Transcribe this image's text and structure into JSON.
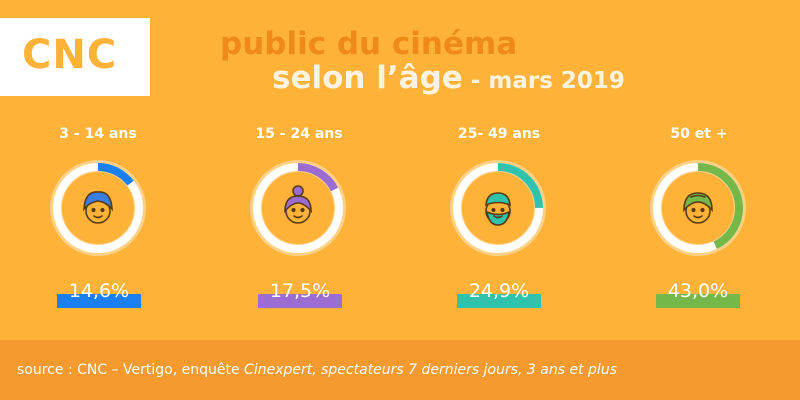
{
  "logo": {
    "text": "CNC"
  },
  "title": {
    "line1": "public du cinéma",
    "line2_main": "selon l’âge",
    "line2_sub": " - mars 2019"
  },
  "colors": {
    "background": "#ffb238",
    "title_accent": "#f08a16",
    "footer": "#f59a2f",
    "ring_halo": "#ffd186",
    "ring_track": "#ffffff",
    "face_fill": "#ffb238",
    "face_line": "#5a3a12"
  },
  "chart_data": {
    "type": "donut",
    "categories": [
      "3 - 14 ans",
      "15 - 24 ans",
      "25- 49 ans",
      "50 et +"
    ],
    "values": [
      14.6,
      17.5,
      24.9,
      43.0
    ],
    "value_labels": [
      "14,6%",
      "17,5%",
      "24,9%",
      "43,0%"
    ],
    "colors": [
      "#1a7ff0",
      "#9b6cd1",
      "#2fc3ae",
      "#74b84a"
    ],
    "icons": [
      "child-face-icon",
      "young-woman-face-icon",
      "bearded-man-face-icon",
      "senior-woman-face-icon"
    ],
    "unit": "%"
  },
  "footer": {
    "source_prefix": "source : CNC – Vertigo, enquête ",
    "source_italic": "Cinexpert, spectateurs 7 derniers jours, 3 ans et plus"
  }
}
